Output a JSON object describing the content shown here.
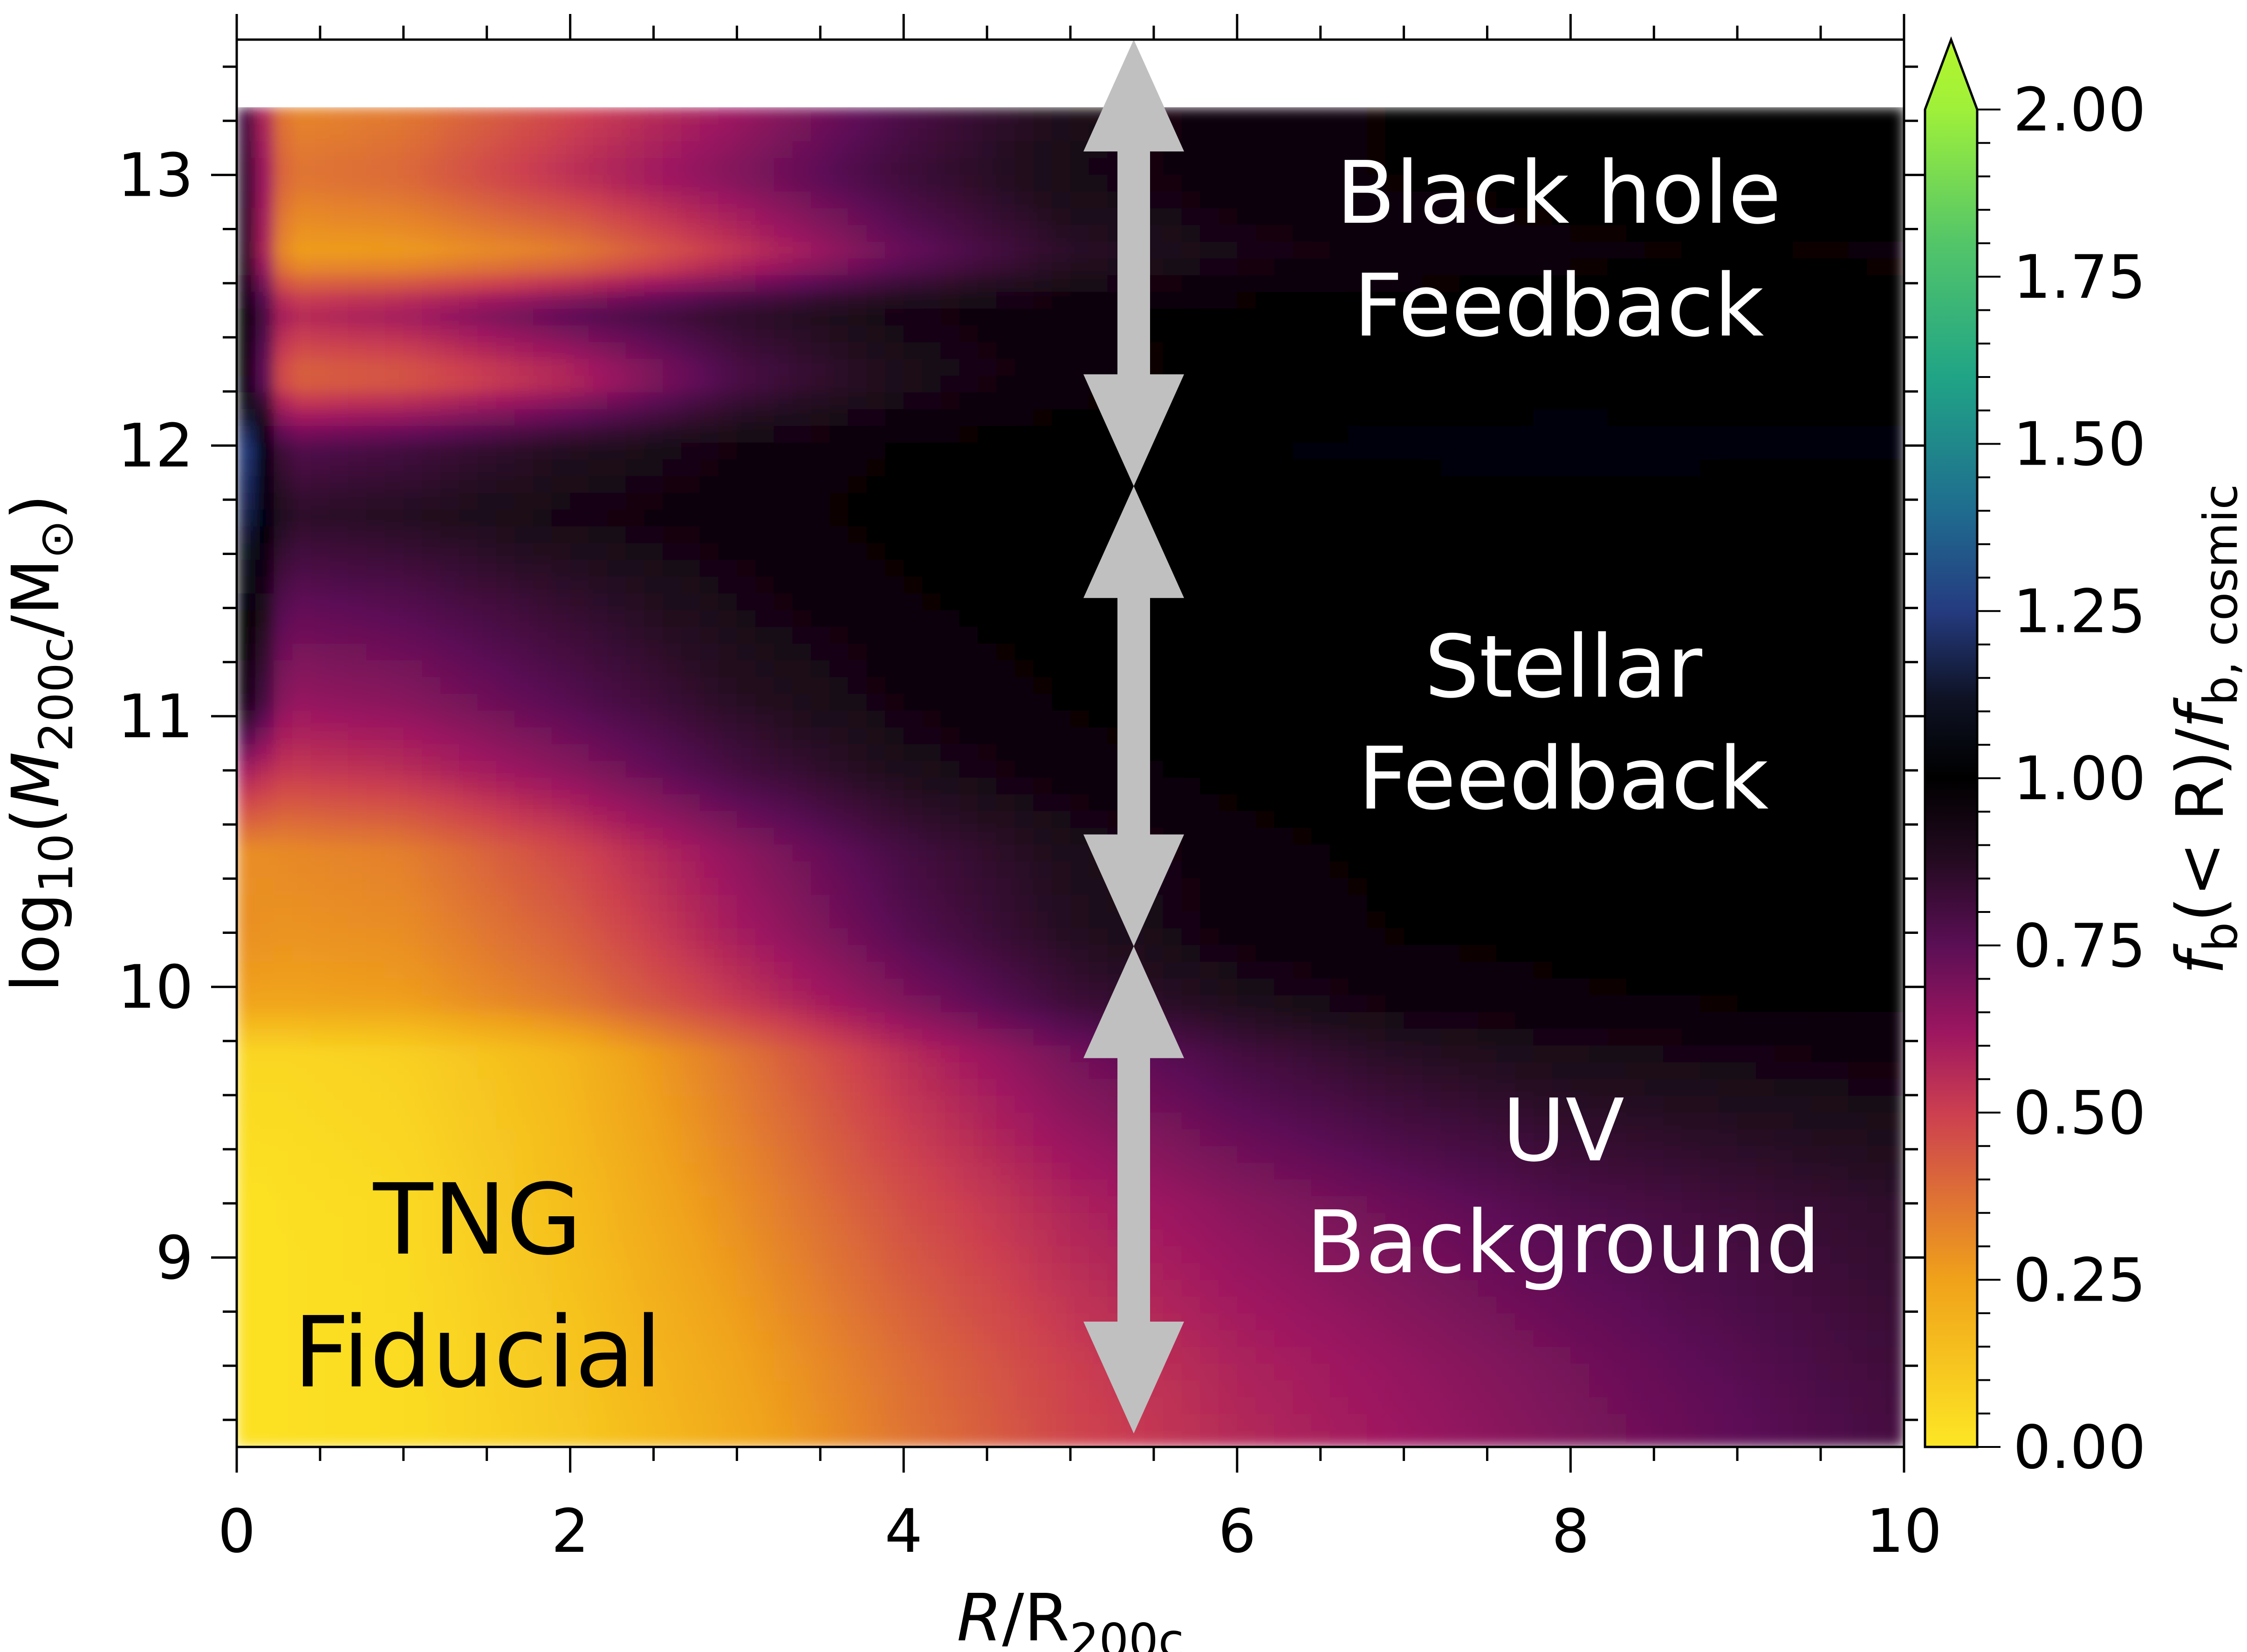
{
  "chart_data": {
    "type": "heatmap",
    "title": "",
    "xlabel_main": "R",
    "xlabel_rest": "/R",
    "xlabel_sub": "200c",
    "ylabel_prefix": "log",
    "ylabel_sub10": "10",
    "ylabel_paren_open": "(",
    "ylabel_main": "M",
    "ylabel_sub": "200c",
    "ylabel_rest": "/M",
    "ylabel_sun": "⊙",
    "ylabel_paren_close": ")",
    "xlim": [
      0,
      10
    ],
    "ylim": [
      8.3,
      13.5
    ],
    "data_ylim": [
      8.3,
      13.25
    ],
    "x_ticks": [
      "0",
      "2",
      "4",
      "6",
      "8",
      "10"
    ],
    "x_tick_values": [
      0,
      2,
      4,
      6,
      8,
      10
    ],
    "y_ticks": [
      "9",
      "10",
      "11",
      "12",
      "13"
    ],
    "y_tick_values": [
      9,
      10,
      11,
      12,
      13
    ],
    "colorbar": {
      "label_f": "f",
      "label_sub": "b",
      "label_mid": "(< R)/",
      "label_f2": "f",
      "label_sub2": "b, cosmic",
      "vmin": 0.0,
      "vmax": 2.0,
      "extend": "max",
      "ticks": [
        "0.00",
        "0.25",
        "0.50",
        "0.75",
        "1.00",
        "1.25",
        "1.50",
        "1.75",
        "2.00"
      ],
      "tick_values": [
        0,
        0.25,
        0.5,
        0.75,
        1.0,
        1.25,
        1.5,
        1.75,
        2.0
      ]
    },
    "annotations": {
      "black_hole": [
        "Black hole",
        "Feedback"
      ],
      "stellar": [
        "Stellar",
        "Feedback"
      ],
      "uv": [
        "UV",
        "Background"
      ],
      "tng": [
        "TNG",
        "Fiducial"
      ]
    },
    "arrow_x": 5.38,
    "arrow_ranges": [
      [
        11.85,
        13.5
      ],
      [
        10.15,
        11.85
      ],
      [
        8.35,
        10.15
      ]
    ],
    "row_samples": [
      {
        "logM": 13.25,
        "center": 0.9,
        "values": [
          0.3,
          0.35,
          0.48,
          0.62,
          0.78,
          0.9,
          0.96,
          0.98,
          0.99,
          0.99,
          1.0
        ]
      },
      {
        "logM": 13.0,
        "center": 0.95,
        "values": [
          0.35,
          0.4,
          0.55,
          0.68,
          0.82,
          0.92,
          0.96,
          0.98,
          0.99,
          0.99,
          1.0
        ]
      },
      {
        "logM": 12.7,
        "center": 1.0,
        "values": [
          0.25,
          0.26,
          0.33,
          0.52,
          0.72,
          0.86,
          0.92,
          0.95,
          0.97,
          0.98,
          0.97
        ]
      },
      {
        "logM": 12.5,
        "center": 1.1,
        "values": [
          0.55,
          0.62,
          0.76,
          0.86,
          0.93,
          0.97,
          0.99,
          1.0,
          1.0,
          1.0,
          1.0
        ]
      },
      {
        "logM": 12.25,
        "center": 1.15,
        "values": [
          0.38,
          0.42,
          0.55,
          0.78,
          0.9,
          0.96,
          0.99,
          1.0,
          1.0,
          1.0,
          1.0
        ]
      },
      {
        "logM": 12.0,
        "center": 1.35,
        "values": [
          0.75,
          0.8,
          0.88,
          0.94,
          0.98,
          1.0,
          1.02,
          1.03,
          1.04,
          1.03,
          1.03
        ]
      },
      {
        "logM": 11.75,
        "center": 1.25,
        "values": [
          0.85,
          0.88,
          0.93,
          0.96,
          0.99,
          1.0,
          1.0,
          1.0,
          1.0,
          1.0,
          1.0
        ]
      },
      {
        "logM": 11.4,
        "center": 1.1,
        "values": [
          0.72,
          0.76,
          0.84,
          0.92,
          0.97,
          1.0,
          1.0,
          1.0,
          1.0,
          1.0,
          1.0
        ]
      },
      {
        "logM": 11.05,
        "center": 1.0,
        "values": [
          0.62,
          0.66,
          0.76,
          0.87,
          0.94,
          0.98,
          1.0,
          1.0,
          1.0,
          1.0,
          1.0
        ]
      },
      {
        "logM": 10.8,
        "center": 0.62,
        "values": [
          0.5,
          0.55,
          0.66,
          0.8,
          0.9,
          0.96,
          0.99,
          1.0,
          1.0,
          1.0,
          1.0
        ]
      },
      {
        "logM": 10.5,
        "center": 0.3,
        "values": [
          0.3,
          0.34,
          0.48,
          0.65,
          0.8,
          0.9,
          0.96,
          0.99,
          1.0,
          1.0,
          1.0
        ]
      },
      {
        "logM": 10.2,
        "center": 0.3,
        "values": [
          0.28,
          0.3,
          0.42,
          0.6,
          0.76,
          0.88,
          0.95,
          0.98,
          0.99,
          1.0,
          1.0
        ]
      },
      {
        "logM": 9.95,
        "center": 0.25,
        "values": [
          0.24,
          0.26,
          0.36,
          0.52,
          0.68,
          0.82,
          0.9,
          0.95,
          0.97,
          0.98,
          0.99
        ]
      },
      {
        "logM": 9.75,
        "center": 0.06,
        "values": [
          0.05,
          0.08,
          0.18,
          0.36,
          0.55,
          0.7,
          0.8,
          0.87,
          0.91,
          0.93,
          0.95
        ]
      },
      {
        "logM": 9.2,
        "center": 0.02,
        "values": [
          0.02,
          0.05,
          0.15,
          0.3,
          0.46,
          0.58,
          0.66,
          0.72,
          0.78,
          0.82,
          0.86
        ]
      },
      {
        "logM": 8.6,
        "center": 0.02,
        "values": [
          0.02,
          0.04,
          0.12,
          0.24,
          0.38,
          0.5,
          0.58,
          0.64,
          0.7,
          0.76,
          0.82
        ]
      },
      {
        "logM": 8.3,
        "center": 0.02,
        "values": [
          0.02,
          0.04,
          0.11,
          0.22,
          0.36,
          0.48,
          0.56,
          0.62,
          0.68,
          0.74,
          0.8
        ]
      }
    ]
  }
}
